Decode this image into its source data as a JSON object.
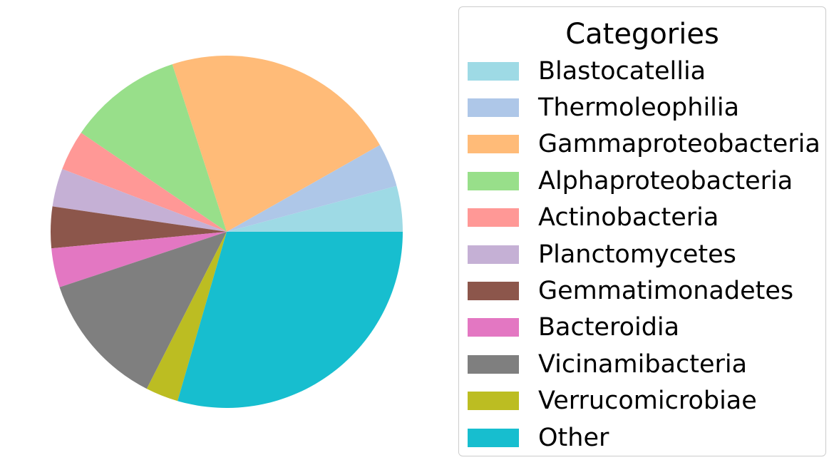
{
  "chart_data": {
    "type": "pie",
    "title": "",
    "start_angle_deg": 0,
    "direction": "counterclockwise",
    "legend": {
      "title": "Categories",
      "placement": "right"
    },
    "slices": [
      {
        "label": "Blastocatellia",
        "value": 4.2,
        "color": "#9edae5"
      },
      {
        "label": "Thermoleophilia",
        "value": 4.0,
        "color": "#aec7e8"
      },
      {
        "label": "Gammaproteobacteria",
        "value": 21.8,
        "color": "#ffbb78"
      },
      {
        "label": "Alphaproteobacteria",
        "value": 10.5,
        "color": "#98df8a"
      },
      {
        "label": "Actinobacteria",
        "value": 3.7,
        "color": "#ff9896"
      },
      {
        "label": "Planctomycetes",
        "value": 3.5,
        "color": "#c5b0d5"
      },
      {
        "label": "Gemmatimonadetes",
        "value": 3.8,
        "color": "#8c564b"
      },
      {
        "label": "Bacteroidia",
        "value": 3.6,
        "color": "#e377c2"
      },
      {
        "label": "Vicinamibacteria",
        "value": 12.4,
        "color": "#7f7f7f"
      },
      {
        "label": "Verrucomicrobiae",
        "value": 3.0,
        "color": "#bcbd22"
      },
      {
        "label": "Other",
        "value": 29.5,
        "color": "#17becf"
      }
    ]
  }
}
